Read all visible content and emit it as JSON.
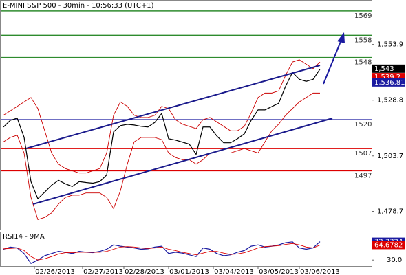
{
  "chart_data": [
    {
      "type": "price",
      "title": "E-MINI S&P 500 - 30min - 10:56:33 (UTC+1)",
      "ylim": [
        1470.5,
        1573.6
      ],
      "yticks": [
        {
          "value": 1553.9,
          "label": "1,553.9"
        },
        {
          "value": 1528.8,
          "label": "1,528.8"
        },
        {
          "value": 1503.7,
          "label": "1,503.7"
        },
        {
          "value": 1478.7,
          "label": "1,478.7"
        }
      ],
      "xticks": [
        {
          "value": 7.5,
          "label": "02/26/2013"
        },
        {
          "value": 14.5,
          "label": "02/27/2013"
        },
        {
          "value": 20.5,
          "label": "02/28/2013"
        },
        {
          "value": 27,
          "label": "03/01/2013"
        },
        {
          "value": 33.5,
          "label": "03/04/2013"
        },
        {
          "value": 40,
          "label": "03/05/2013"
        },
        {
          "value": 46,
          "label": "03/06/2013"
        }
      ],
      "series": [
        {
          "name": "Price",
          "color": "#000000",
          "values": [
            1516.7,
            1519.7,
            1520.7,
            1512.1,
            1492.1,
            1484.4,
            1487.4,
            1490.5,
            1492.7,
            1491.1,
            1489.9,
            1492.1,
            1491.7,
            1491.4,
            1492.1,
            1495.1,
            1514.5,
            1517.3,
            1517.9,
            1517.6,
            1517.0,
            1516.7,
            1518.8,
            1522.8,
            1511.4,
            1510.8,
            1509.9,
            1509.0,
            1504.4,
            1516.7,
            1516.7,
            1512.7,
            1509.6,
            1509.6,
            1511.4,
            1513.6,
            1519.7,
            1524.4,
            1524.4,
            1525.9,
            1527.4,
            1535.1,
            1541.3,
            1538.2,
            1537.3,
            1538.2,
            1542.8
          ]
        },
        {
          "name": "Upper band",
          "color": "#cc0000",
          "values": [
            1522,
            1524,
            1526,
            1528,
            1530,
            1525,
            1515,
            1505,
            1500,
            1498,
            1497,
            1496,
            1496,
            1497,
            1498,
            1505,
            1522,
            1528,
            1526,
            1522,
            1521,
            1521,
            1522,
            1526,
            1525,
            1520,
            1518,
            1517,
            1516,
            1520,
            1521,
            1519,
            1517,
            1515,
            1515,
            1517,
            1523,
            1530,
            1532,
            1532,
            1533,
            1540,
            1546,
            1547,
            1545,
            1543,
            1546
          ]
        },
        {
          "name": "Lower band",
          "color": "#cc0000",
          "values": [
            1510,
            1512,
            1513,
            1505,
            1485,
            1475,
            1476,
            1478,
            1482,
            1485,
            1486,
            1486,
            1487,
            1487,
            1487,
            1485,
            1480,
            1488,
            1500,
            1510,
            1512,
            1512,
            1512,
            1511,
            1505,
            1503,
            1502,
            1502,
            1500,
            1502,
            1505,
            1505,
            1505,
            1505,
            1506,
            1507,
            1506,
            1505,
            1510,
            1515,
            1518,
            1522,
            1525,
            1528,
            1530,
            1532,
            1532
          ]
        }
      ],
      "levels": [
        {
          "value": 1569,
          "color": "#2e8b2e"
        },
        {
          "value": 1558,
          "color": "#2e8b2e"
        },
        {
          "value": 1548,
          "color": "#2e8b2e"
        },
        {
          "value": 1520,
          "color": "#1a1aa0"
        },
        {
          "value": 1507,
          "color": "#dd0000"
        },
        {
          "value": 1497,
          "color": "#dd0000"
        }
      ],
      "price_boxes": [
        {
          "value": 1543,
          "label": "1,543",
          "color": "#000000"
        },
        {
          "value": 1539.2,
          "label": "1,539.2",
          "color": "#dd0000"
        },
        {
          "value": 1536.81,
          "label": "1,536.81",
          "color": "#1a1aa0"
        }
      ]
    },
    {
      "type": "rsi",
      "title": "RSI14 - 9MA",
      "ylim": [
        16,
        94
      ],
      "yticks": [
        {
          "value": 30,
          "label": "30.0"
        }
      ],
      "series": [
        {
          "name": "RSI14",
          "color": "#1a1aa0",
          "values": [
            55,
            60,
            58,
            45,
            22,
            30,
            40,
            45,
            50,
            48,
            45,
            50,
            48,
            47,
            50,
            55,
            65,
            62,
            60,
            58,
            55,
            56,
            60,
            62,
            45,
            48,
            46,
            42,
            38,
            58,
            55,
            45,
            40,
            42,
            48,
            52,
            62,
            65,
            60,
            62,
            65,
            70,
            72,
            58,
            55,
            58,
            72.3324
          ]
        },
        {
          "name": "9MA",
          "color": "#dd0000",
          "values": [
            56,
            57,
            58,
            52,
            38,
            30,
            33,
            38,
            44,
            47,
            47,
            48,
            48,
            48,
            48,
            50,
            55,
            60,
            61,
            60,
            58,
            57,
            58,
            60,
            55,
            52,
            48,
            45,
            42,
            46,
            50,
            50,
            46,
            43,
            44,
            47,
            52,
            58,
            61,
            62,
            63,
            66,
            68,
            65,
            60,
            58,
            64.6782
          ]
        }
      ]
    }
  ]
}
